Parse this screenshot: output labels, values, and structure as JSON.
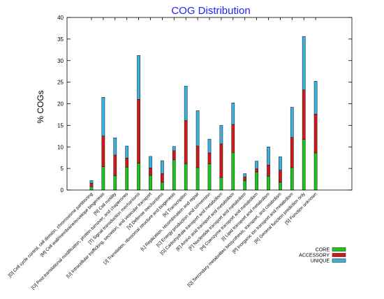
{
  "chart_data": {
    "type": "bar",
    "stacked": true,
    "title": "COG Distribution",
    "xlabel": "",
    "ylabel": "% COGs",
    "ylim": [
      0,
      40
    ],
    "yticks": [
      "0",
      "5",
      "10",
      "15",
      "20",
      "25",
      "30",
      "35",
      "40"
    ],
    "grid": false,
    "legend_position": "bottom-right",
    "categories": [
      "[D] Cell cycle control, cell division, chromosome partitioning",
      "[M] Cell wall/membrane/envelope biogenesis",
      "[N] Cell motility",
      "[O] Post-translational modification, protein turnover, and chaperones",
      "[T] Signal transduction mechanisms",
      "[U] Intracellular trafficking, secretion, and vesicular transport",
      "[V] Defense mechanisms",
      "[J] Translation, ribosomal structure and biogenesis",
      "[K] Transcription",
      "[L] Replication, recombination and repair",
      "[C] Energy production and conversion",
      "[G] Carbohydrate transport and metabolism",
      "[E] Amino acid transport and metabolism",
      "[F] Nucleotide transport and metabolism",
      "[H] Coenzyme transport and metabolism",
      "[I] Lipid transport and metabolism",
      "[Q] Secondary metabolites biosynthesis, transport, and catabolism",
      "[P] Inorganic ion transport and metabolism",
      "[R] General function prediction only",
      "[S] Function unknown"
    ],
    "series": [
      {
        "name": "CORE",
        "color": "#1ec41e",
        "values": [
          0.8,
          5.4,
          3.3,
          5.3,
          6.2,
          3.4,
          1.8,
          7.0,
          6.1,
          5.2,
          6.1,
          2.9,
          8.7,
          2.2,
          4.2,
          3.2,
          1.8,
          5.2,
          11.7,
          8.6
        ]
      },
      {
        "name": "ACCESSORY",
        "color": "#d01818",
        "values": [
          0.8,
          7.1,
          4.8,
          2.1,
          14.8,
          1.7,
          2.0,
          2.1,
          10.0,
          5.0,
          2.5,
          7.8,
          6.5,
          0.8,
          0.7,
          2.6,
          2.8,
          7.0,
          11.5,
          9.0
        ]
      },
      {
        "name": "UNIQUE",
        "color": "#3ab0e0",
        "values": [
          0.6,
          9.0,
          4.0,
          2.8,
          10.2,
          2.7,
          3.0,
          1.0,
          8.0,
          8.2,
          3.2,
          4.3,
          5.0,
          0.8,
          1.8,
          4.2,
          3.1,
          7.0,
          12.4,
          7.6
        ]
      }
    ]
  }
}
